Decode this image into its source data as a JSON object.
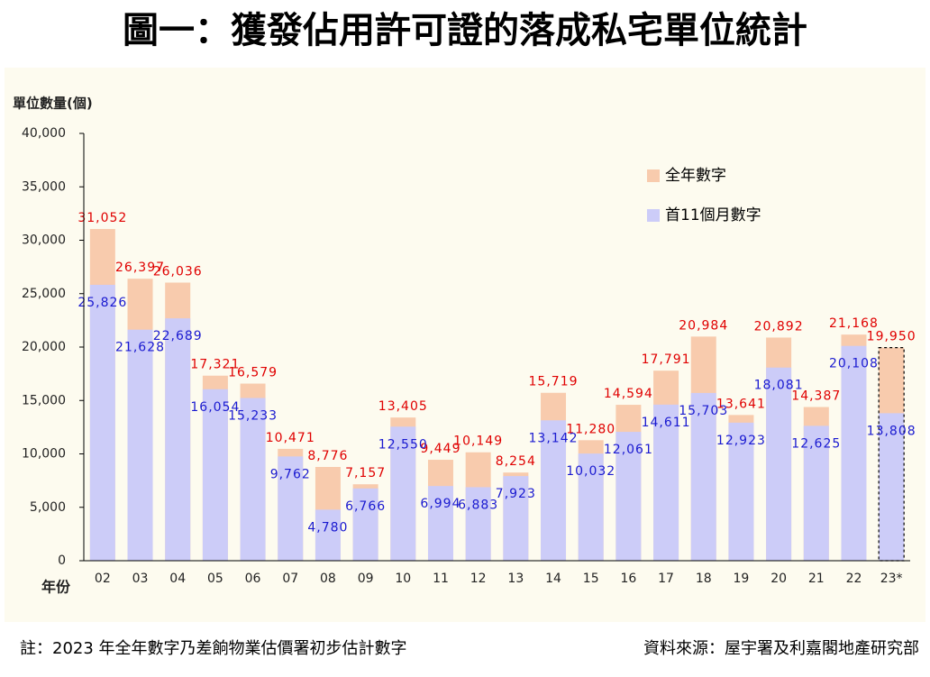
{
  "chart_data": {
    "type": "bar",
    "title": "圖一：獲發佔用許可證的落成私宅單位統計",
    "y_label": "單位數量(個)",
    "x_label": "年份",
    "footnote": "註：2023 年全年數字乃差餉物業估價署初步估計數字",
    "source": "資料來源：屋宇署及利嘉閣地產研究部",
    "categories": [
      "02",
      "03",
      "04",
      "05",
      "06",
      "07",
      "08",
      "09",
      "10",
      "11",
      "12",
      "13",
      "14",
      "15",
      "16",
      "17",
      "18",
      "19",
      "20",
      "21",
      "22",
      "23*"
    ],
    "series": [
      {
        "name": "全年數字",
        "color": "#f8cbad",
        "label_color": "#e00000",
        "values": [
          31052,
          26397,
          26036,
          17321,
          16579,
          10471,
          8776,
          7157,
          13405,
          9449,
          10149,
          8254,
          15719,
          11280,
          14594,
          17791,
          20984,
          13641,
          20892,
          14387,
          21168,
          19950
        ],
        "value_labels": [
          "31,052",
          "26,397",
          "26,036",
          "17,321",
          "16,579",
          "10,471",
          "8,776",
          "7,157",
          "13,405",
          "9,449",
          "10,149",
          "8,254",
          "15,719",
          "11,280",
          "14,594",
          "17,791",
          "20,984",
          "13,641",
          "20,892",
          "14,387",
          "21,168",
          "19,950"
        ]
      },
      {
        "name": "首11個月數字",
        "color": "#ccccf8",
        "label_color": "#1a1ad0",
        "values": [
          25826,
          21628,
          22689,
          16054,
          15233,
          9762,
          4780,
          6766,
          12550,
          6994,
          6883,
          7923,
          13142,
          10032,
          12061,
          14611,
          15703,
          12923,
          18081,
          12625,
          20108,
          13808
        ],
        "value_labels": [
          "25,826",
          "21,628",
          "22,689",
          "16,054",
          "15,233",
          "9,762",
          "4,780",
          "6,766",
          "12,550",
          "6,994",
          "6,883",
          "7,923",
          "13,142",
          "10,032",
          "12,061",
          "14,611",
          "15,703",
          "12,923",
          "18,081",
          "12,625",
          "20,108",
          "13,808"
        ]
      }
    ],
    "ylim": [
      0,
      40000
    ],
    "yticks": [
      0,
      {
        "value": 5000,
        "label": "5,000"
      },
      {
        "value": 10000,
        "label": "10,000"
      },
      {
        "value": 15000,
        "label": "15,000"
      },
      {
        "value": 20000,
        "label": "20,000"
      },
      {
        "value": 25000,
        "label": "25,000"
      },
      {
        "value": 30000,
        "label": "30,000"
      },
      {
        "value": 35000,
        "label": "35,000"
      },
      {
        "value": 40000,
        "label": "40,000"
      }
    ],
    "grid": false,
    "legend": "top-right"
  }
}
